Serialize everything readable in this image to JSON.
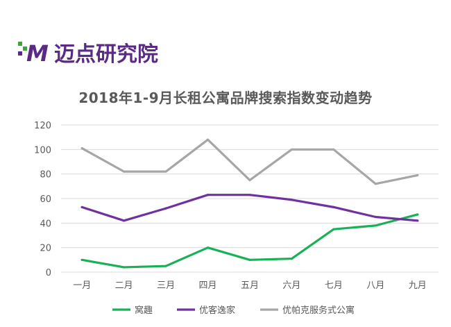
{
  "logo": {
    "text": "迈点研究院",
    "mark": "M"
  },
  "colors": {
    "series1": "#19b157",
    "series2": "#6f31a0",
    "series3": "#a6a6a6",
    "grid": "#d9d9d9",
    "logo_green": "#3fa535",
    "logo_purple": "#5b2a86"
  },
  "chart_data": {
    "type": "line",
    "title": "2018年1-9月长租公寓品牌搜索指数变动趋势",
    "categories": [
      "一月",
      "二月",
      "三月",
      "四月",
      "五月",
      "六月",
      "七月",
      "八月",
      "九月"
    ],
    "yticks": [
      0,
      20,
      40,
      60,
      80,
      100,
      120
    ],
    "ylim": [
      0,
      120
    ],
    "grid": true,
    "legend": "bottom",
    "series": [
      {
        "name": "窝趣",
        "values": [
          10,
          4,
          5,
          20,
          10,
          11,
          35,
          38,
          47
        ]
      },
      {
        "name": "优客逸家",
        "values": [
          53,
          42,
          52,
          63,
          63,
          59,
          53,
          45,
          42
        ]
      },
      {
        "name": "优帕克服务式公寓",
        "values": [
          101,
          82,
          82,
          108,
          75,
          100,
          100,
          72,
          79
        ]
      }
    ]
  }
}
